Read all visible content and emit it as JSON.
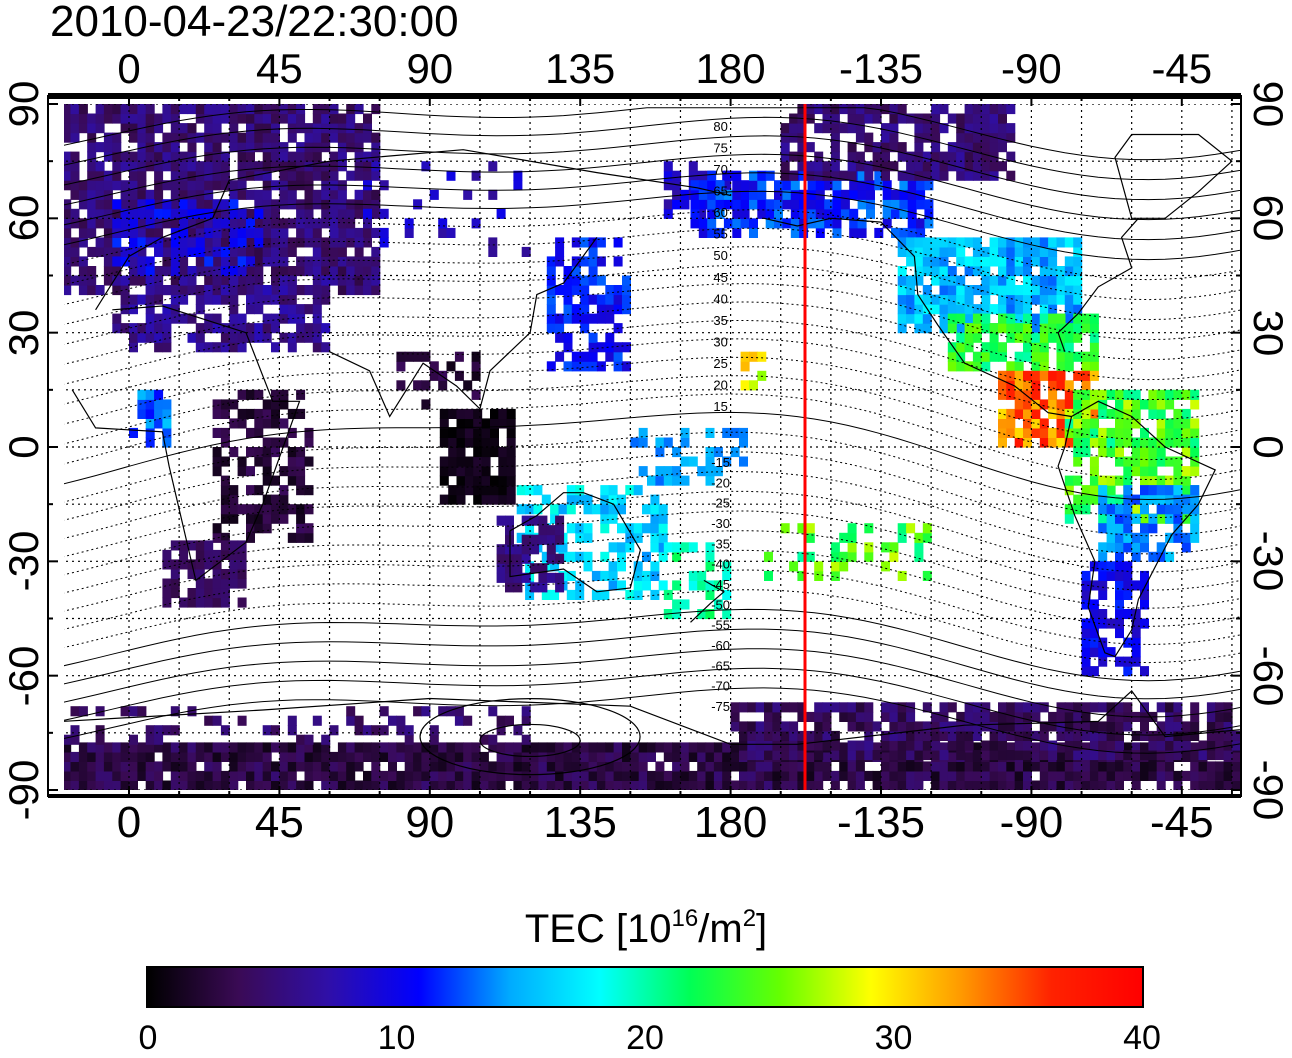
{
  "header": {
    "timestamp": "2010-04-23/22:30:00"
  },
  "map": {
    "projection": "equirectangular",
    "lon_ticks": [
      "0",
      "45",
      "90",
      "135",
      "180",
      "-135",
      "-90",
      "-45"
    ],
    "lat_ticks": [
      "90",
      "60",
      "30",
      "0",
      "-30",
      "-60",
      "-90"
    ],
    "contour_labels_north": [
      "80",
      "75",
      "70",
      "65",
      "60",
      "55",
      "50",
      "45",
      "40",
      "35",
      "30",
      "25",
      "20",
      "15"
    ],
    "contour_labels_south": [
      "-15",
      "-20",
      "-25",
      "-30",
      "-35",
      "-40",
      "-45",
      "-50",
      "-55",
      "-60",
      "-65",
      "-70",
      "-75"
    ],
    "terminator_line_color": "#ff0000",
    "grid": "dotted"
  },
  "colorbar": {
    "title_prefix": "TEC  [10",
    "title_exp1": "16",
    "title_mid": "/m",
    "title_exp2": "2",
    "title_suffix": "]",
    "ticks": [
      "0",
      "10",
      "20",
      "30",
      "40"
    ],
    "range": [
      0,
      40
    ],
    "colors": [
      "#000000",
      "#3a0a55",
      "#2f0fa8",
      "#0000ff",
      "#00aaff",
      "#00ffff",
      "#00ff55",
      "#66ff00",
      "#ffff00",
      "#ff9900",
      "#ff2200",
      "#ff0000"
    ]
  }
}
